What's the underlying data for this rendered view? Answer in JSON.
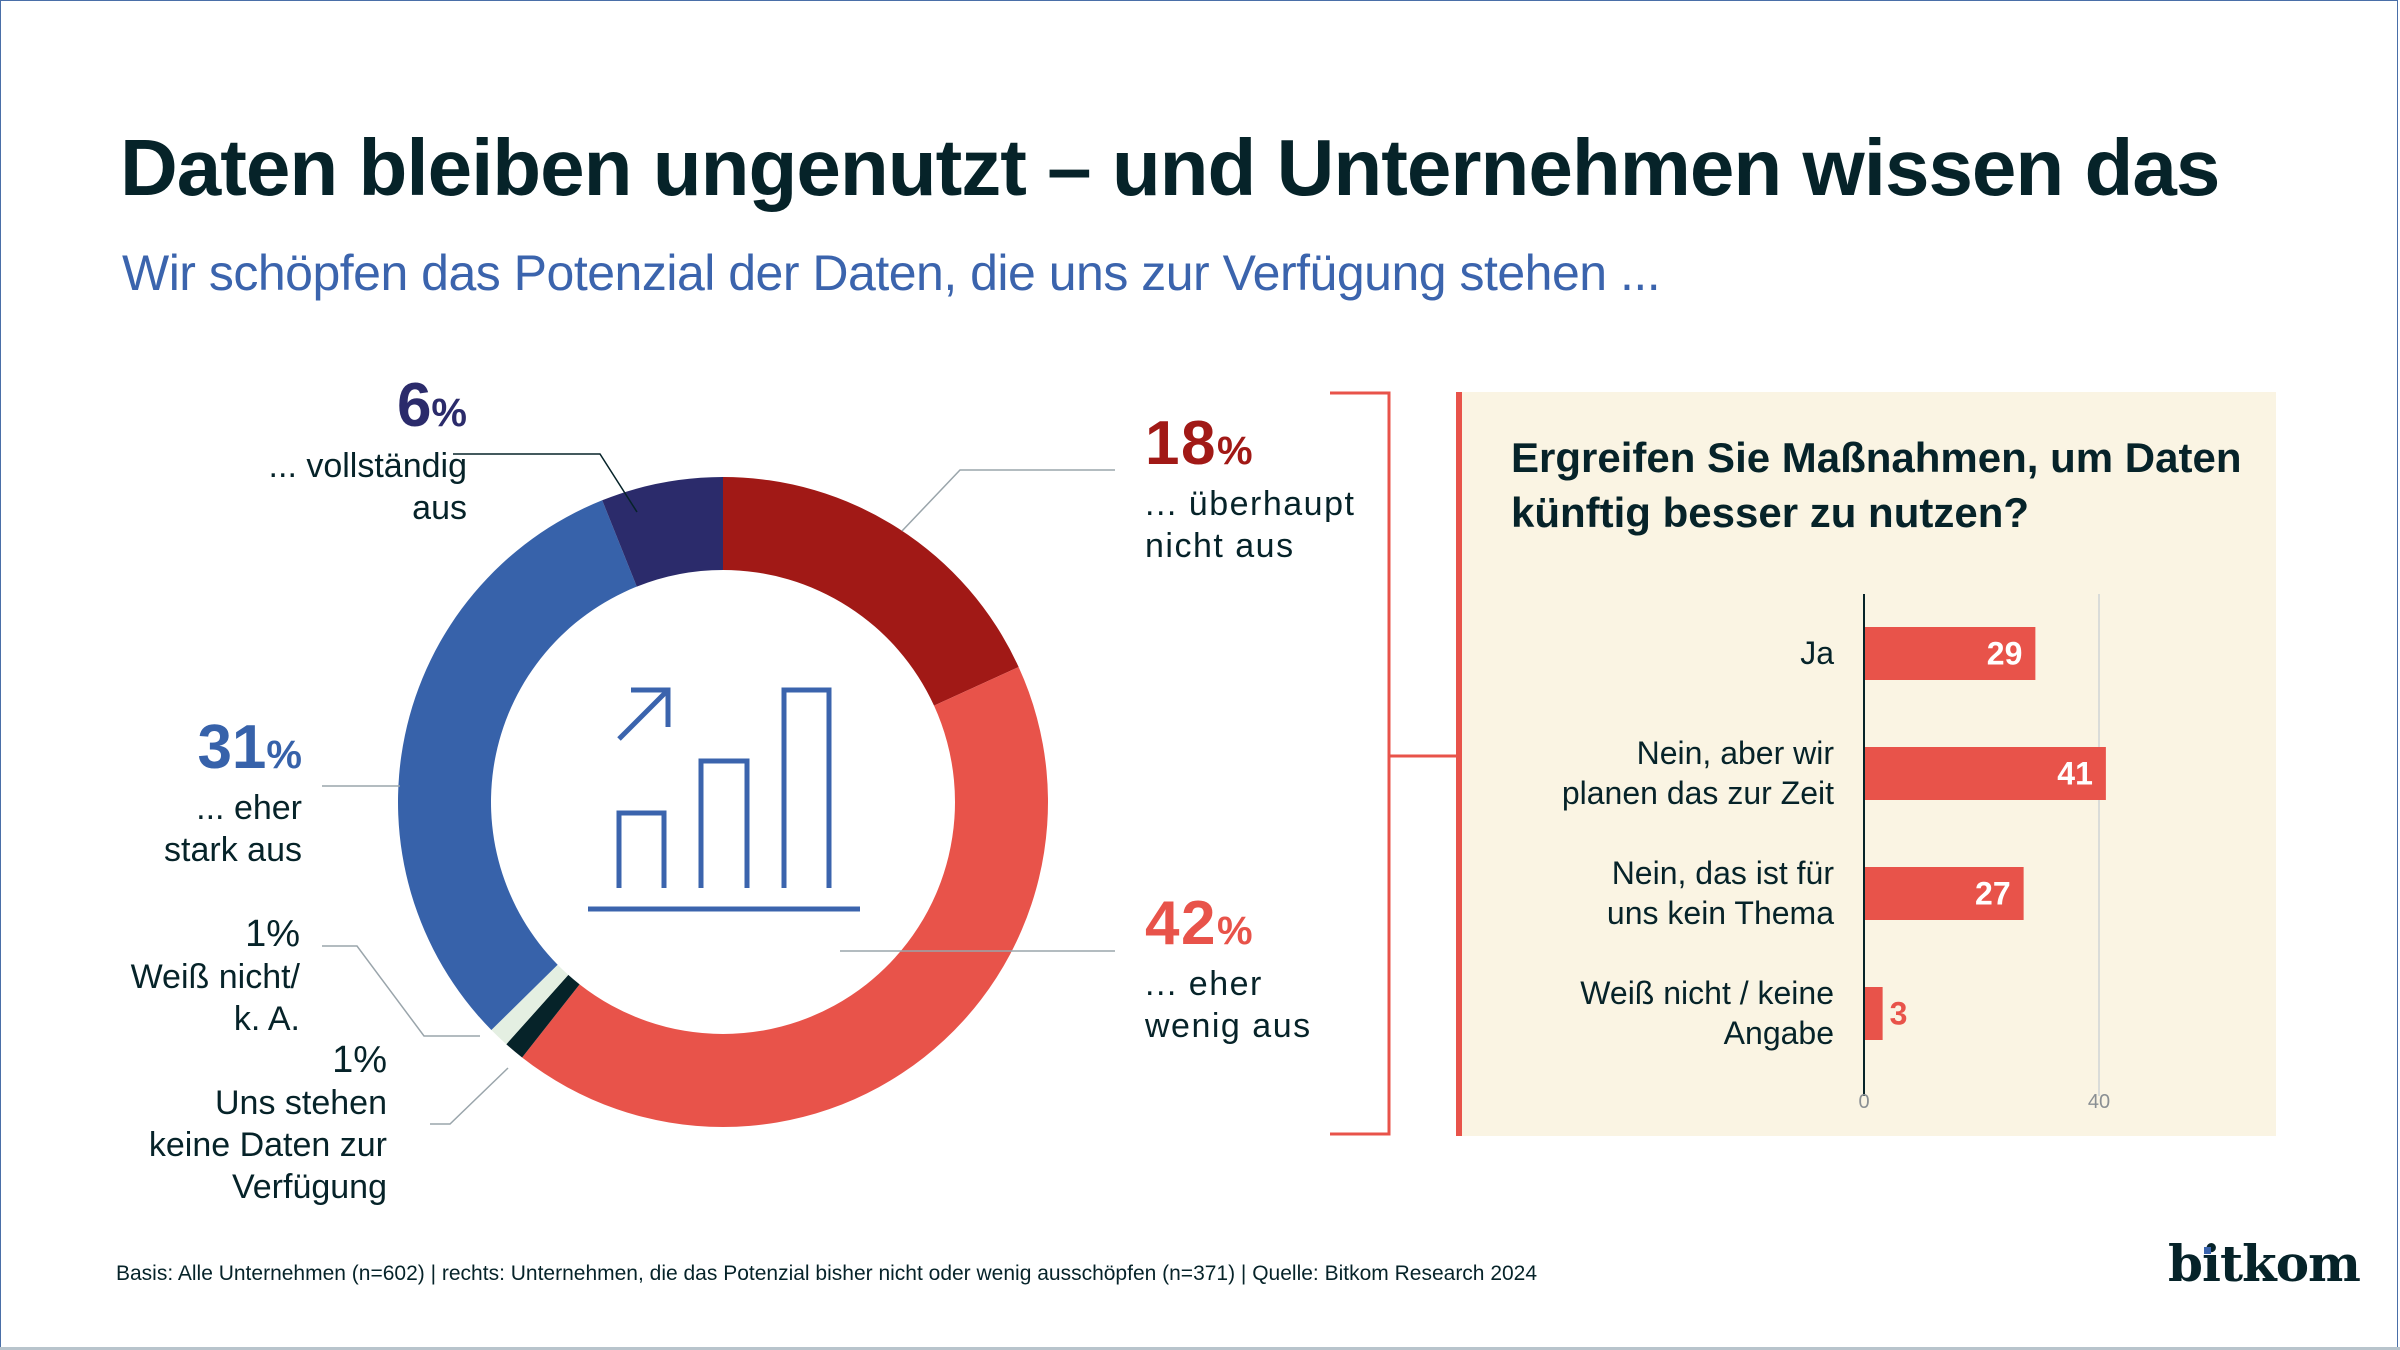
{
  "header": {
    "title": "Daten bleiben ungenutzt – und Unternehmen wissen das",
    "subtitle": "Wir schöpfen das Potenzial der Daten, die uns zur Verfügung stehen ..."
  },
  "colors": {
    "dark_red": "#a11916",
    "red": "#e8534a",
    "blue": "#3762aa",
    "navy": "#2b2b6b",
    "pale_green": "#e4efe2",
    "black": "#062329",
    "panel_bg": "#faf4e3",
    "subtitle_blue": "#3b64ad"
  },
  "donut_labels": {
    "vollstaendig": {
      "value": "6",
      "sign": "%",
      "text1": "... vollständig",
      "text2": "aus"
    },
    "eher_stark": {
      "value": "31",
      "sign": "%",
      "text1": "... eher",
      "text2": "stark aus"
    },
    "weiss_nicht": {
      "value": "1%",
      "text1": "Weiß nicht/",
      "text2": "k. A."
    },
    "keine_daten": {
      "value": "1%",
      "text1": "Uns stehen",
      "text2": "keine Daten zur",
      "text3": "Verfügung"
    },
    "ueberhaupt_nicht": {
      "value": "18",
      "sign": "%",
      "text1": "... überhaupt",
      "text2": "nicht aus"
    },
    "eher_wenig": {
      "value": "42",
      "sign": "%",
      "text1": "... eher",
      "text2": "wenig aus"
    }
  },
  "panel": {
    "title_line1": "Ergreifen Sie Maßnahmen, um Daten",
    "title_line2": "künftig besser zu nutzen?",
    "bar_labels": [
      {
        "line1": "Ja",
        "line2": ""
      },
      {
        "line1": "Nein, aber wir",
        "line2": "planen das zur Zeit"
      },
      {
        "line1": "Nein, das ist für",
        "line2": "uns kein Thema"
      },
      {
        "line1": "Weiß nicht / keine",
        "line2": "Angabe"
      }
    ]
  },
  "footer": {
    "note": "Basis: Alle Unternehmen (n=602) | rechts: Unternehmen, die das Potenzial bisher nicht oder wenig ausschöpfen (n=371) | Quelle: Bitkom Research 2024",
    "logo": "bitkom"
  },
  "chart_data": [
    {
      "type": "pie",
      "variant": "donut",
      "title": "Wir schöpfen das Potenzial der Daten, die uns zur Verfügung stehen ...",
      "unit": "%",
      "categories": [
        "... überhaupt nicht aus",
        "... eher wenig aus",
        "Uns stehen keine Daten zur Verfügung",
        "Weiß nicht/ k. A.",
        "... eher stark aus",
        "... vollständig aus"
      ],
      "values": [
        18,
        42,
        1,
        1,
        31,
        6
      ],
      "colors": [
        "#a11916",
        "#e8534a",
        "#062329",
        "#e4efe2",
        "#3762aa",
        "#2b2b6b"
      ],
      "start": "top, clockwise",
      "center_icon": "bar-chart-growth-icon"
    },
    {
      "type": "bar",
      "orientation": "horizontal",
      "title": "Ergreifen Sie Maßnahmen, um Daten künftig besser zu nutzen?",
      "categories": [
        "Ja",
        "Nein, aber wir planen das zur Zeit",
        "Nein, das ist für uns kein Thema",
        "Weiß nicht / keine Angabe"
      ],
      "values": [
        29,
        41,
        27,
        3
      ],
      "value_labels": [
        "29",
        "41",
        "27",
        "3"
      ],
      "xlim": [
        0,
        40
      ],
      "xticks": [
        "0",
        "40"
      ],
      "bar_color": "#e8534a",
      "grid": "vertical line at 40"
    }
  ]
}
